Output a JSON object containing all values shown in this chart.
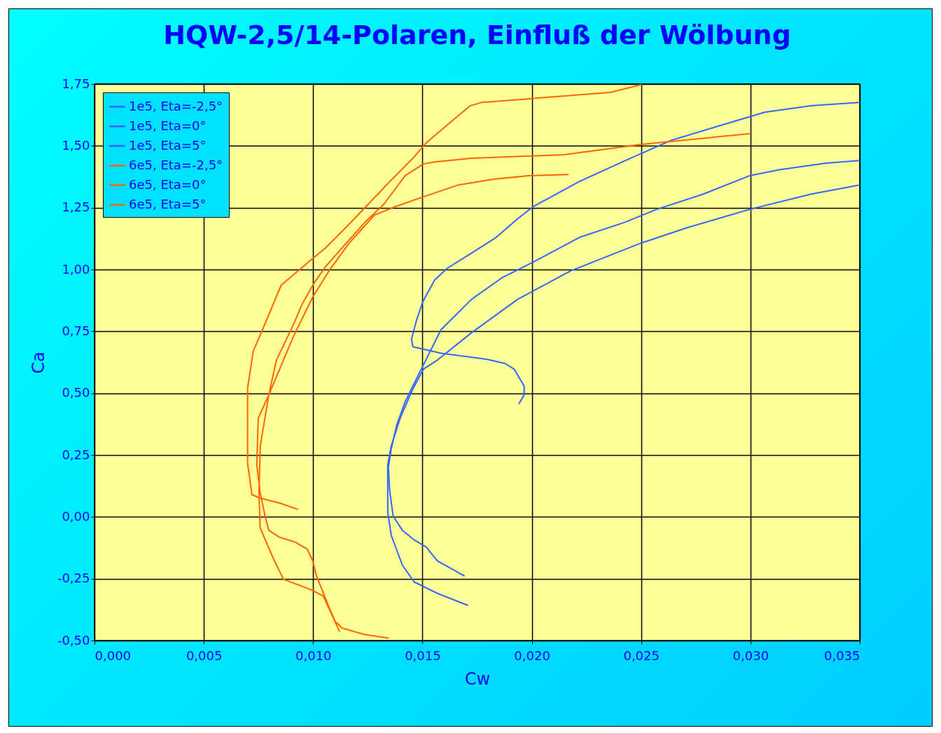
{
  "chart_data": {
    "type": "line",
    "title": "HQW-2,5/14-Polaren, Einfluß der Wölbung",
    "xlabel": "Cw",
    "ylabel": "Ca",
    "xlim": [
      0,
      0.035
    ],
    "ylim": [
      -0.5,
      1.75
    ],
    "xticks": [
      {
        "value": 0,
        "label": "0,000"
      },
      {
        "value": 0.005,
        "label": "0,005"
      },
      {
        "value": 0.01,
        "label": "0,010"
      },
      {
        "value": 0.015,
        "label": "0,015"
      },
      {
        "value": 0.02,
        "label": "0,020"
      },
      {
        "value": 0.025,
        "label": "0,025"
      },
      {
        "value": 0.03,
        "label": "0,030"
      },
      {
        "value": 0.035,
        "label": "0,035"
      }
    ],
    "yticks": [
      {
        "value": -0.5,
        "label": "-0,50"
      },
      {
        "value": -0.25,
        "label": "-0,25"
      },
      {
        "value": 0,
        "label": "0,00"
      },
      {
        "value": 0.25,
        "label": "0,25"
      },
      {
        "value": 0.5,
        "label": "0,50"
      },
      {
        "value": 0.75,
        "label": "0,75"
      },
      {
        "value": 1,
        "label": "1,00"
      },
      {
        "value": 1.25,
        "label": "1,25"
      },
      {
        "value": 1.5,
        "label": "1,50"
      },
      {
        "value": 1.75,
        "label": "1,75"
      }
    ],
    "grid": true,
    "legend": "top left",
    "marker": "none",
    "line_style": "solid",
    "series": [
      {
        "name": "1e5, Eta=-2,5°",
        "color": "#3366ff",
        "x": [
          0.01706,
          0.01568,
          0.01462,
          0.01408,
          0.01357,
          0.01341,
          0.01341,
          0.01357,
          0.01398,
          0.01453,
          0.01504,
          0.01568,
          0.01725,
          0.01936,
          0.02176,
          0.025,
          0.0271,
          0.02995,
          0.03277,
          0.035
        ],
        "values": [
          -0.357,
          -0.309,
          -0.263,
          -0.195,
          -0.074,
          0.02,
          0.21,
          0.286,
          0.4,
          0.512,
          0.597,
          0.634,
          0.745,
          0.88,
          0.994,
          1.107,
          1.169,
          1.243,
          1.305,
          1.342
        ]
      },
      {
        "name": "1e5, Eta=0°",
        "color": "#3366ff",
        "x": [
          0.0169,
          0.01568,
          0.01517,
          0.01462,
          0.01408,
          0.01366,
          0.0135,
          0.01344,
          0.01357,
          0.01382,
          0.0142,
          0.01462,
          0.01504,
          0.01584,
          0.01725,
          0.01866,
          0.02006,
          0.02218,
          0.02429,
          0.0257,
          0.02784,
          0.02995,
          0.03136,
          0.03347,
          0.035
        ],
        "values": [
          -0.238,
          -0.178,
          -0.122,
          -0.093,
          -0.054,
          0.003,
          0.105,
          0.201,
          0.275,
          0.371,
          0.464,
          0.54,
          0.614,
          0.756,
          0.88,
          0.968,
          1.03,
          1.13,
          1.192,
          1.243,
          1.305,
          1.379,
          1.404,
          1.43,
          1.441
        ]
      },
      {
        "name": "1e5, Eta=5°",
        "color": "#3366ff",
        "x": [
          0.01942,
          0.01965,
          0.01965,
          0.0192,
          0.01878,
          0.01795,
          0.01584,
          0.01456,
          0.0145,
          0.01472,
          0.01501,
          0.01555,
          0.01613,
          0.01725,
          0.01837,
          0.01936,
          0.02006,
          0.02218,
          0.02429,
          0.0264,
          0.02854,
          0.03066,
          0.03277,
          0.035
        ],
        "values": [
          0.459,
          0.493,
          0.529,
          0.597,
          0.62,
          0.637,
          0.662,
          0.688,
          0.719,
          0.793,
          0.869,
          0.957,
          1.005,
          1.067,
          1.13,
          1.206,
          1.254,
          1.356,
          1.441,
          1.523,
          1.58,
          1.636,
          1.662,
          1.676
        ]
      },
      {
        "name": "6e5, Eta=-2,5°",
        "color": "#ff6600",
        "x": [
          0.0112,
          0.01046,
          0.00992,
          0.00864,
          0.00813,
          0.00758,
          0.00752,
          0.00758,
          0.00797,
          0.00909,
          0.00998,
          0.01078,
          0.01165,
          0.0128,
          0.01366,
          0.01504,
          0.01664,
          0.01824,
          0.01984,
          0.02166
        ],
        "values": [
          -0.462,
          -0.32,
          -0.295,
          -0.252,
          -0.159,
          -0.045,
          0.096,
          0.286,
          0.493,
          0.728,
          0.889,
          1.002,
          1.107,
          1.22,
          1.251,
          1.294,
          1.342,
          1.365,
          1.379,
          1.384
        ]
      },
      {
        "name": "6e5, Eta=0°",
        "color": "#ff6600",
        "x": [
          0.01344,
          0.01238,
          0.01133,
          0.011,
          0.01056,
          0.01014,
          0.00998,
          0.00973,
          0.00918,
          0.00845,
          0.00797,
          0.0078,
          0.00758,
          0.00742,
          0.00749,
          0.00797,
          0.00832,
          0.00909,
          0.0095,
          0.01005,
          0.01056,
          0.01152,
          0.01238,
          0.01325,
          0.0142,
          0.01504,
          0.01558,
          0.01725,
          0.02147,
          0.025,
          0.02995
        ],
        "values": [
          -0.49,
          -0.476,
          -0.45,
          -0.422,
          -0.329,
          -0.235,
          -0.178,
          -0.13,
          -0.102,
          -0.082,
          -0.054,
          0.003,
          0.096,
          0.21,
          0.4,
          0.493,
          0.634,
          0.776,
          0.861,
          0.946,
          1.011,
          1.107,
          1.192,
          1.266,
          1.379,
          1.427,
          1.435,
          1.45,
          1.464,
          1.506,
          1.549
        ]
      },
      {
        "name": "6e5, Eta=5°",
        "color": "#ff6600",
        "x": [
          0.00928,
          0.00854,
          0.00758,
          0.0072,
          0.007,
          0.007,
          0.00726,
          0.00768,
          0.00854,
          0.00941,
          0.0099,
          0.01056,
          0.01152,
          0.01238,
          0.01344,
          0.01453,
          0.01517,
          0.0158,
          0.01718,
          0.01773,
          0.01984,
          0.02358,
          0.025
        ],
        "values": [
          0.031,
          0.054,
          0.076,
          0.09,
          0.218,
          0.52,
          0.67,
          0.756,
          0.937,
          1.002,
          1.039,
          1.087,
          1.172,
          1.251,
          1.35,
          1.447,
          1.512,
          1.56,
          1.662,
          1.676,
          1.69,
          1.716,
          1.747
        ]
      }
    ]
  }
}
